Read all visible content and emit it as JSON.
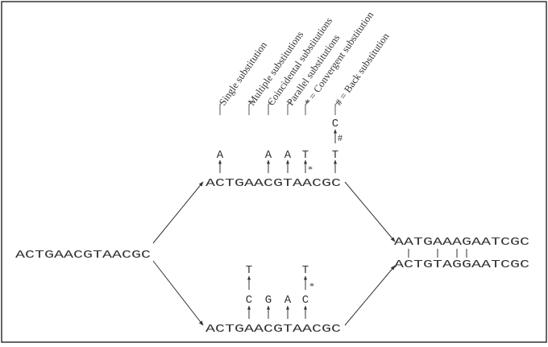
{
  "sequences": {
    "ancestral": "ACTGAACGTAACGC",
    "upper": "ACTGAACGTAACGC",
    "lower": "ACTGAACGTAACGC",
    "aligned_top": "AATGAAAGAATCGC",
    "aligned_bottom": "ACTGTAGGAATCGC"
  },
  "upper_subs": {
    "a1": "A",
    "a2": "A",
    "a3": "A",
    "t1": "T",
    "t2": "T",
    "c_back": "C"
  },
  "lower_subs": {
    "c1": "C",
    "g1": "G",
    "a1": "A",
    "c2": "C",
    "t1": "T",
    "t2": "T"
  },
  "markers": {
    "star": "*",
    "hash": "#"
  },
  "labels": {
    "single": "Single substitution",
    "multiple": "Multiple substitutions",
    "coincidental": "Coincidental substitutions",
    "parallel": "Parallel substitutions",
    "convergent": "* = Convergent substitution",
    "back": "# = Back substitution"
  }
}
